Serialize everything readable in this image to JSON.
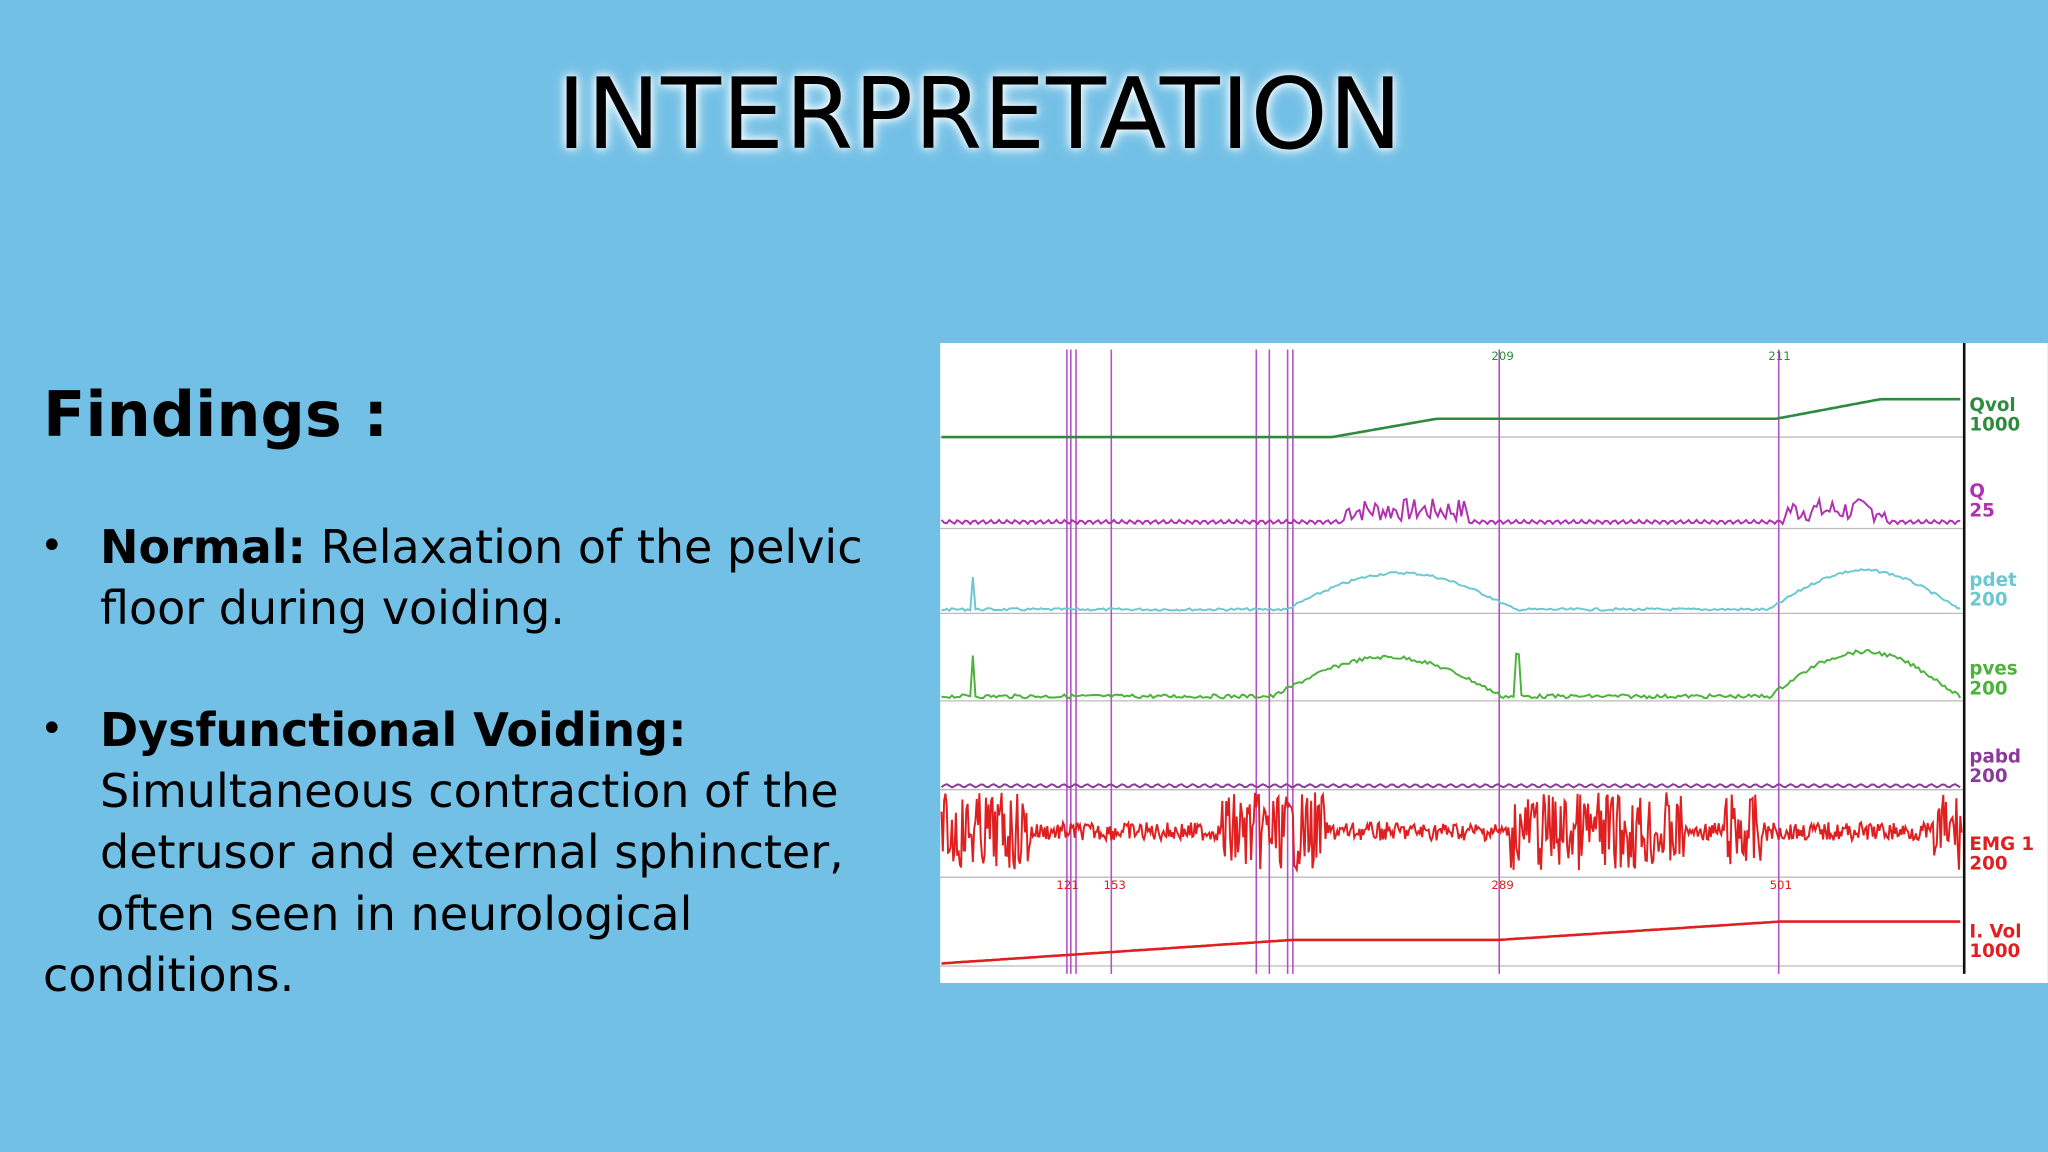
{
  "title": "INTERPRETATION",
  "findings": {
    "heading": "Findings :",
    "items": [
      {
        "term": "Normal:",
        "lines": [
          "Relaxation of the pelvic",
          "floor during voiding."
        ]
      },
      {
        "term": "Dysfunctional Voiding:",
        "lines": [
          "Simultaneous contraction of the",
          "detrusor and external sphincter,",
          "often seen in neurological",
          "conditions."
        ]
      }
    ]
  },
  "trace": {
    "channels": [
      {
        "name": "Qvol",
        "scale": "1000"
      },
      {
        "name": "Q",
        "scale": "25"
      },
      {
        "name": "pdet",
        "scale": "200"
      },
      {
        "name": "pves",
        "scale": "200"
      },
      {
        "name": "pabd",
        "scale": "200"
      },
      {
        "name": "EMG 1",
        "scale": "200"
      },
      {
        "name": "I. Vol",
        "scale": "1000"
      }
    ],
    "markers": [
      "209",
      "211",
      "289",
      "501",
      "121",
      "153"
    ]
  }
}
